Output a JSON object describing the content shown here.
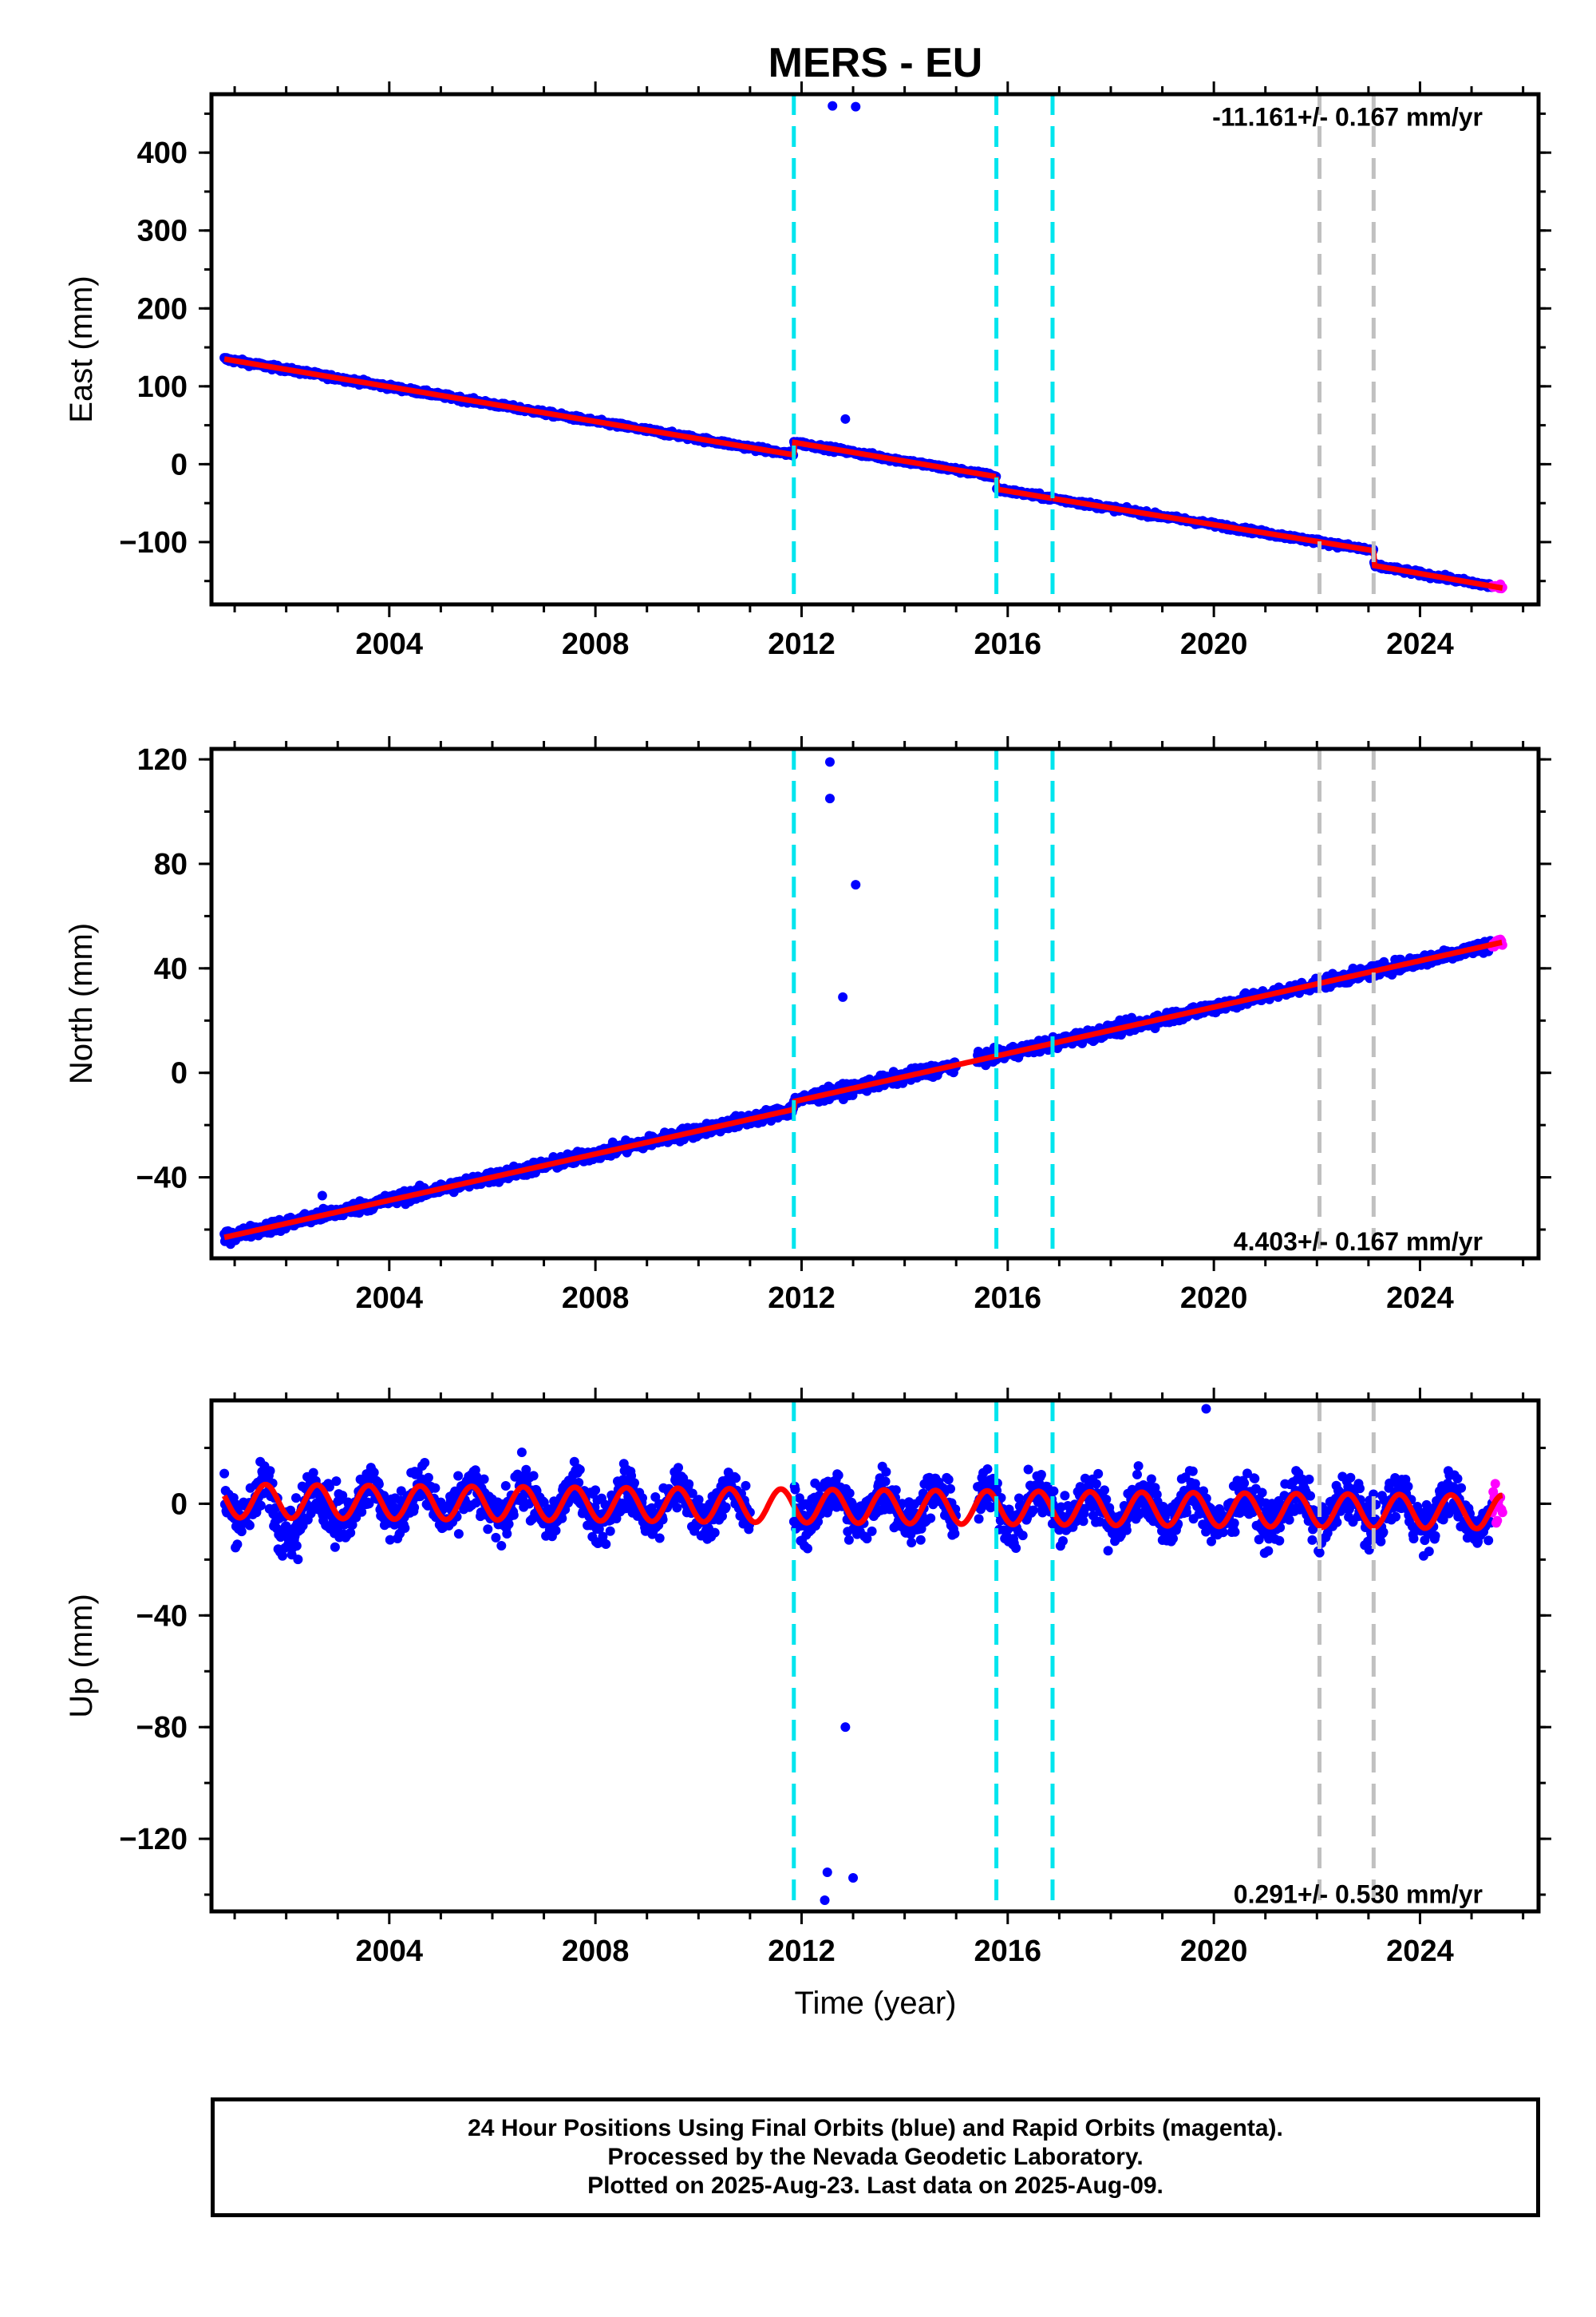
{
  "title": "MERS - EU",
  "xlabel": "Time (year)",
  "footer": {
    "line1": "24 Hour Positions Using Final Orbits (blue) and Rapid Orbits (magenta).",
    "line2": "Processed by the Nevada Geodetic Laboratory.",
    "line3": "Plotted on 2025-Aug-23. Last data on 2025-Aug-09."
  },
  "colors": {
    "final": "#0000ff",
    "rapid": "#ff00ff",
    "model": "#ff0000",
    "equipment_change": "#00e5ee",
    "earthquake": "#c0c0c0"
  },
  "x_ticks": [
    "2004",
    "2008",
    "2012",
    "2016",
    "2020",
    "2024"
  ],
  "chart_data": [
    {
      "type": "scatter",
      "name": "east",
      "ylabel": "East (mm)",
      "rate_label": "-11.161+/- 0.167 mm/yr",
      "xlim": [
        2000.55,
        2026.3
      ],
      "ylim": [
        -180,
        475
      ],
      "yticks": [
        "400",
        "300",
        "200",
        "100",
        "0",
        "−100"
      ],
      "ytick_values": [
        400,
        300,
        200,
        100,
        0,
        -100
      ],
      "segments": [
        {
          "x0": 2000.8,
          "x1": 2011.85,
          "y0": 135,
          "y1": 12
        },
        {
          "x0": 2011.85,
          "x1": 2015.78,
          "y0": 28,
          "y1": -16
        },
        {
          "x0": 2015.78,
          "x1": 2016.87,
          "y0": -32,
          "y1": -44
        },
        {
          "x0": 2016.87,
          "x1": 2023.1,
          "y0": -44,
          "y1": -111
        },
        {
          "x0": 2023.1,
          "x1": 2025.6,
          "y0": -130,
          "y1": -159
        }
      ],
      "final_range": [
        2000.8,
        2025.4
      ],
      "rapid_range": [
        2025.4,
        2025.61
      ],
      "outliers": [
        [
          2012.6,
          460
        ],
        [
          2013.05,
          459
        ],
        [
          2012.85,
          58
        ]
      ],
      "equipment_changes": [
        2011.85,
        2015.78,
        2016.87
      ],
      "earthquakes": [
        2022.05,
        2023.1
      ]
    },
    {
      "type": "scatter",
      "name": "north",
      "ylabel": "North (mm)",
      "rate_label": "4.403+/- 0.167 mm/yr",
      "xlim": [
        2000.55,
        2026.3
      ],
      "ylim": [
        -71,
        124
      ],
      "yticks": [
        "120",
        "80",
        "40",
        "0",
        "−40"
      ],
      "ytick_values": [
        120,
        80,
        40,
        0,
        -40
      ],
      "segments": [
        {
          "x0": 2000.8,
          "x1": 2011.85,
          "y0": -63,
          "y1": -14
        },
        {
          "x0": 2011.85,
          "x1": 2025.6,
          "y0": -11,
          "y1": 50
        }
      ],
      "final_range": [
        2000.8,
        2025.4
      ],
      "rapid_range": [
        2025.4,
        2025.61
      ],
      "outliers": [
        [
          2012.55,
          119
        ],
        [
          2012.55,
          105
        ],
        [
          2013.05,
          72
        ],
        [
          2012.8,
          29
        ],
        [
          2002.7,
          -47
        ]
      ],
      "equipment_changes": [
        2011.85,
        2015.78,
        2016.87
      ],
      "earthquakes": [
        2022.05,
        2023.1
      ]
    },
    {
      "type": "scatter",
      "name": "up",
      "ylabel": "Up (mm)",
      "rate_label": "0.291+/- 0.530 mm/yr",
      "xlim": [
        2000.55,
        2026.3
      ],
      "ylim": [
        -146,
        37
      ],
      "yticks": [
        "0",
        "−40",
        "−80",
        "−120"
      ],
      "ytick_values": [
        0,
        -40,
        -80,
        -120
      ],
      "segments": [
        {
          "x0": 2000.8,
          "x1": 2025.6,
          "y0": 1,
          "y1": -3
        }
      ],
      "seasonal_amplitude": 6,
      "final_range": [
        2000.8,
        2025.4
      ],
      "rapid_range": [
        2025.4,
        2025.61
      ],
      "outliers": [
        [
          2012.85,
          -80
        ],
        [
          2012.5,
          -132
        ],
        [
          2013.0,
          -134
        ],
        [
          2012.45,
          -142
        ],
        [
          2019.85,
          34
        ]
      ],
      "equipment_changes": [
        2011.85,
        2015.78,
        2016.87
      ],
      "earthquakes": [
        2022.05,
        2023.1
      ]
    }
  ]
}
